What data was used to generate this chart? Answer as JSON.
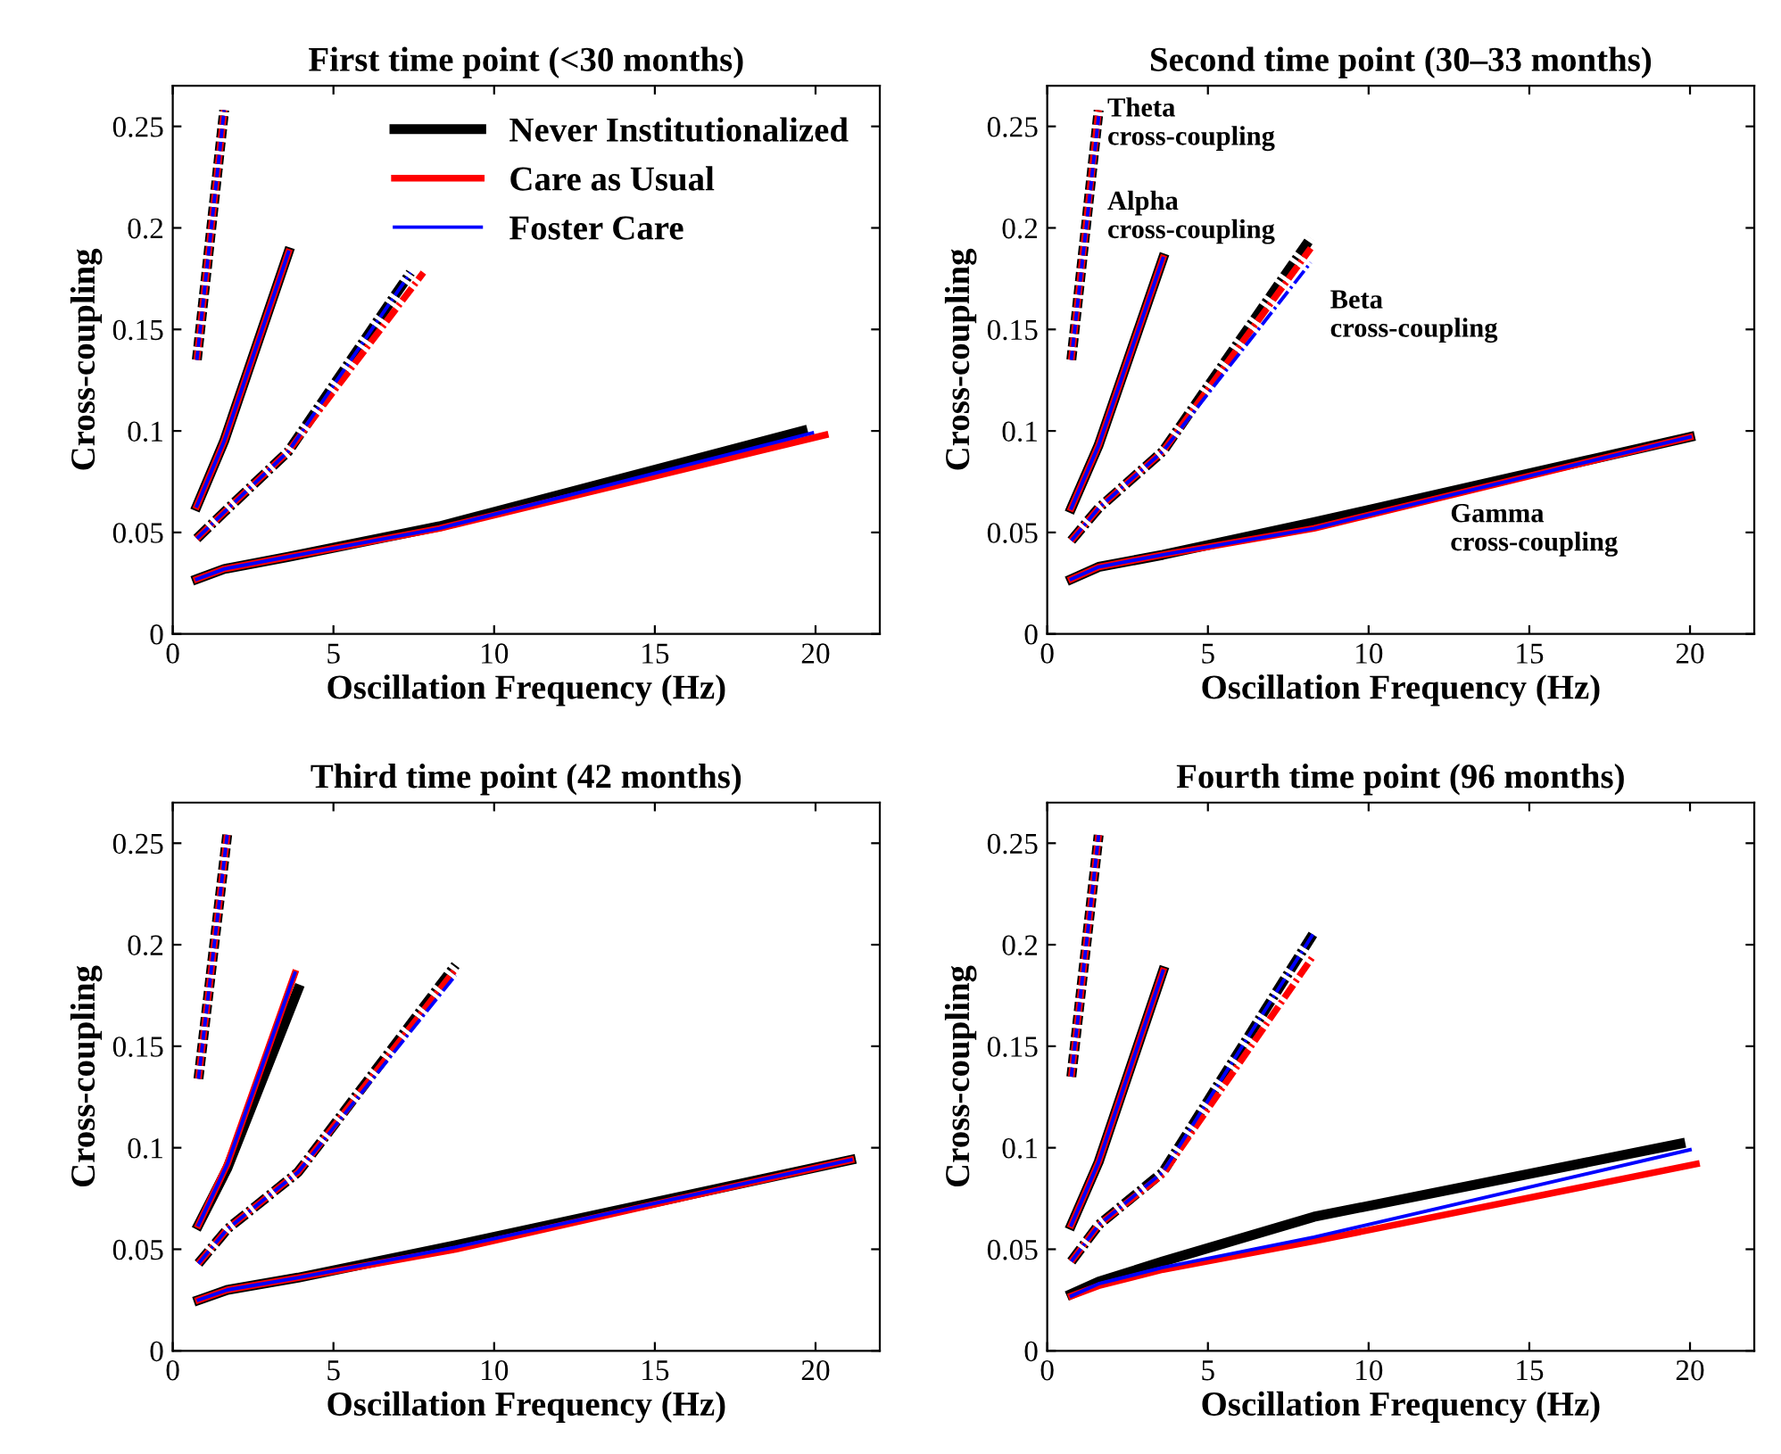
{
  "chart_data": [
    {
      "type": "line",
      "title": "First time point (<30 months)",
      "xlabel": "Oscillation Frequency (Hz)",
      "ylabel": "Cross-coupling",
      "xlim": [
        0,
        22
      ],
      "ylim": [
        0,
        0.27
      ],
      "xticks": [
        0,
        5,
        10,
        15,
        20
      ],
      "yticks": [
        0,
        0.05,
        0.1,
        0.15,
        0.2,
        0.25
      ],
      "grid": false,
      "legend": "top right",
      "series": [
        {
          "color": "#000000",
          "line_style": "dashed",
          "x": [
            0.75,
            1.6
          ],
          "values": [
            0.135,
            0.258
          ]
        },
        {
          "color": "#ff0000",
          "line_style": "dashed",
          "x": [
            0.75,
            1.6
          ],
          "values": [
            0.135,
            0.258
          ]
        },
        {
          "color": "#0000ff",
          "line_style": "dashed",
          "x": [
            0.75,
            1.6
          ],
          "values": [
            0.135,
            0.258
          ]
        },
        {
          "color": "#000000",
          "line_style": "solid",
          "x": [
            0.75,
            1.6,
            3.6
          ],
          "values": [
            0.063,
            0.095,
            0.188
          ]
        },
        {
          "color": "#ff0000",
          "line_style": "solid",
          "x": [
            0.75,
            1.6,
            3.6
          ],
          "values": [
            0.063,
            0.095,
            0.188
          ]
        },
        {
          "color": "#0000ff",
          "line_style": "solid",
          "x": [
            0.75,
            1.6,
            3.6
          ],
          "values": [
            0.063,
            0.095,
            0.188
          ]
        },
        {
          "color": "#000000",
          "line_style": "dashdot",
          "x": [
            0.75,
            1.6,
            3.6,
            7.4
          ],
          "values": [
            0.047,
            0.06,
            0.09,
            0.178
          ]
        },
        {
          "color": "#ff0000",
          "line_style": "dashdot",
          "x": [
            0.75,
            1.6,
            3.6,
            7.8
          ],
          "values": [
            0.047,
            0.06,
            0.09,
            0.178
          ]
        },
        {
          "color": "#0000ff",
          "line_style": "dashdot",
          "x": [
            0.75,
            1.6,
            3.6,
            7.4
          ],
          "values": [
            0.047,
            0.06,
            0.09,
            0.178
          ]
        },
        {
          "name": "Never Institutionalized",
          "color": "#000000",
          "line_style": "solid",
          "x": [
            0.75,
            1.6,
            3.6,
            8.3,
            19.6
          ],
          "values": [
            0.027,
            0.032,
            0.038,
            0.053,
            0.1
          ]
        },
        {
          "name": "Care as Usual",
          "color": "#ff0000",
          "line_style": "solid",
          "x": [
            0.75,
            1.6,
            3.6,
            8.3,
            20.3
          ],
          "values": [
            0.027,
            0.032,
            0.038,
            0.052,
            0.098
          ]
        },
        {
          "name": "Foster Care",
          "color": "#0000ff",
          "line_style": "solid",
          "x": [
            0.75,
            1.6,
            3.6,
            8.3,
            19.9
          ],
          "values": [
            0.027,
            0.032,
            0.038,
            0.052,
            0.099
          ]
        }
      ]
    },
    {
      "type": "line",
      "title": "Second time point (30–33 months)",
      "xlabel": "Oscillation Frequency (Hz)",
      "ylabel": "Cross-coupling",
      "xlim": [
        0,
        22
      ],
      "ylim": [
        0,
        0.27
      ],
      "xticks": [
        0,
        5,
        10,
        15,
        20
      ],
      "yticks": [
        0,
        0.05,
        0.1,
        0.15,
        0.2,
        0.25
      ],
      "grid": false,
      "annotations": [
        "Theta\ncross-coupling",
        "Alpha\ncross-coupling",
        "Beta\ncross-coupling",
        "Gamma\ncross-coupling"
      ],
      "series": [
        {
          "color": "#000000",
          "line_style": "dashed",
          "x": [
            0.75,
            1.6
          ],
          "values": [
            0.135,
            0.258
          ]
        },
        {
          "color": "#ff0000",
          "line_style": "dashed",
          "x": [
            0.75,
            1.6
          ],
          "values": [
            0.135,
            0.258
          ]
        },
        {
          "color": "#0000ff",
          "line_style": "dashed",
          "x": [
            0.75,
            1.6
          ],
          "values": [
            0.135,
            0.255
          ]
        },
        {
          "color": "#000000",
          "line_style": "solid",
          "x": [
            0.75,
            1.6,
            3.6
          ],
          "values": [
            0.062,
            0.093,
            0.185
          ]
        },
        {
          "color": "#ff0000",
          "line_style": "solid",
          "x": [
            0.75,
            1.6,
            3.6
          ],
          "values": [
            0.062,
            0.093,
            0.185
          ]
        },
        {
          "color": "#0000ff",
          "line_style": "solid",
          "x": [
            0.75,
            1.6,
            3.6
          ],
          "values": [
            0.062,
            0.093,
            0.185
          ]
        },
        {
          "color": "#000000",
          "line_style": "dashdot",
          "x": [
            0.75,
            1.6,
            3.6,
            8.2
          ],
          "values": [
            0.046,
            0.062,
            0.09,
            0.195
          ]
        },
        {
          "color": "#ff0000",
          "line_style": "dashdot",
          "x": [
            0.75,
            1.6,
            3.6,
            8.2
          ],
          "values": [
            0.046,
            0.062,
            0.09,
            0.19
          ]
        },
        {
          "color": "#0000ff",
          "line_style": "dashdot",
          "x": [
            0.75,
            1.6,
            3.6,
            8.2
          ],
          "values": [
            0.046,
            0.062,
            0.09,
            0.183
          ]
        },
        {
          "color": "#000000",
          "line_style": "solid",
          "x": [
            0.75,
            1.6,
            3.6,
            8.3,
            20
          ],
          "values": [
            0.027,
            0.033,
            0.039,
            0.055,
            0.097
          ]
        },
        {
          "color": "#ff0000",
          "line_style": "solid",
          "x": [
            0.75,
            1.6,
            3.6,
            8.3,
            20
          ],
          "values": [
            0.027,
            0.033,
            0.039,
            0.052,
            0.097
          ]
        },
        {
          "color": "#0000ff",
          "line_style": "solid",
          "x": [
            0.75,
            1.6,
            3.6,
            8.3,
            20
          ],
          "values": [
            0.027,
            0.033,
            0.039,
            0.052,
            0.097
          ]
        }
      ]
    },
    {
      "type": "line",
      "title": "Third time point (42 months)",
      "xlabel": "Oscillation Frequency (Hz)",
      "ylabel": "Cross-coupling",
      "xlim": [
        0,
        22
      ],
      "ylim": [
        0,
        0.27
      ],
      "xticks": [
        0,
        5,
        10,
        15,
        20
      ],
      "yticks": [
        0,
        0.05,
        0.1,
        0.15,
        0.2,
        0.25
      ],
      "grid": false,
      "series": [
        {
          "color": "#000000",
          "line_style": "dashed",
          "x": [
            0.8,
            1.7
          ],
          "values": [
            0.134,
            0.255
          ]
        },
        {
          "color": "#ff0000",
          "line_style": "dashed",
          "x": [
            0.8,
            1.7
          ],
          "values": [
            0.134,
            0.255
          ]
        },
        {
          "color": "#0000ff",
          "line_style": "dashed",
          "x": [
            0.8,
            1.7
          ],
          "values": [
            0.134,
            0.255
          ]
        },
        {
          "color": "#000000",
          "line_style": "solid",
          "x": [
            0.8,
            1.7,
            3.9
          ],
          "values": [
            0.062,
            0.09,
            0.178
          ]
        },
        {
          "color": "#ff0000",
          "line_style": "solid",
          "x": [
            0.8,
            1.7,
            3.8
          ],
          "values": [
            0.062,
            0.092,
            0.186
          ]
        },
        {
          "color": "#0000ff",
          "line_style": "solid",
          "x": [
            0.8,
            1.7,
            3.8
          ],
          "values": [
            0.062,
            0.092,
            0.186
          ]
        },
        {
          "color": "#000000",
          "line_style": "dashdot",
          "x": [
            0.8,
            1.7,
            3.9,
            8.8
          ],
          "values": [
            0.043,
            0.06,
            0.088,
            0.19
          ]
        },
        {
          "color": "#ff0000",
          "line_style": "dashdot",
          "x": [
            0.8,
            1.7,
            3.9,
            8.8
          ],
          "values": [
            0.043,
            0.06,
            0.088,
            0.188
          ]
        },
        {
          "color": "#0000ff",
          "line_style": "dashdot",
          "x": [
            0.8,
            1.7,
            3.9,
            8.8
          ],
          "values": [
            0.043,
            0.06,
            0.088,
            0.185
          ]
        },
        {
          "color": "#000000",
          "line_style": "solid",
          "x": [
            0.8,
            1.7,
            3.9,
            8.8,
            21.1
          ],
          "values": [
            0.025,
            0.03,
            0.036,
            0.052,
            0.094
          ]
        },
        {
          "color": "#ff0000",
          "line_style": "solid",
          "x": [
            0.8,
            1.7,
            3.9,
            8.8,
            21.1
          ],
          "values": [
            0.025,
            0.03,
            0.036,
            0.05,
            0.094
          ]
        },
        {
          "color": "#0000ff",
          "line_style": "solid",
          "x": [
            0.8,
            1.7,
            3.9,
            8.8,
            21.1
          ],
          "values": [
            0.025,
            0.03,
            0.036,
            0.051,
            0.094
          ]
        }
      ]
    },
    {
      "type": "line",
      "title": "Fourth time point (96 months)",
      "xlabel": "Oscillation Frequency (Hz)",
      "ylabel": "Cross-coupling",
      "xlim": [
        0,
        22
      ],
      "ylim": [
        0,
        0.27
      ],
      "xticks": [
        0,
        5,
        10,
        15,
        20
      ],
      "yticks": [
        0,
        0.05,
        0.1,
        0.15,
        0.2,
        0.25
      ],
      "grid": false,
      "series": [
        {
          "color": "#000000",
          "line_style": "dashed",
          "x": [
            0.75,
            1.6
          ],
          "values": [
            0.135,
            0.254
          ]
        },
        {
          "color": "#ff0000",
          "line_style": "dashed",
          "x": [
            0.75,
            1.6
          ],
          "values": [
            0.135,
            0.254
          ]
        },
        {
          "color": "#0000ff",
          "line_style": "dashed",
          "x": [
            0.75,
            1.6
          ],
          "values": [
            0.135,
            0.254
          ]
        },
        {
          "color": "#000000",
          "line_style": "solid",
          "x": [
            0.75,
            1.6,
            3.6
          ],
          "values": [
            0.062,
            0.093,
            0.187
          ]
        },
        {
          "color": "#ff0000",
          "line_style": "solid",
          "x": [
            0.75,
            1.6,
            3.6
          ],
          "values": [
            0.062,
            0.093,
            0.187
          ]
        },
        {
          "color": "#0000ff",
          "line_style": "solid",
          "x": [
            0.75,
            1.6,
            3.6
          ],
          "values": [
            0.062,
            0.093,
            0.187
          ]
        },
        {
          "color": "#000000",
          "line_style": "dashdot",
          "x": [
            0.75,
            1.6,
            3.6,
            8.3
          ],
          "values": [
            0.044,
            0.062,
            0.088,
            0.206
          ]
        },
        {
          "color": "#ff0000",
          "line_style": "dashdot",
          "x": [
            0.75,
            1.6,
            3.6,
            8.3
          ],
          "values": [
            0.044,
            0.062,
            0.087,
            0.195
          ]
        },
        {
          "color": "#0000ff",
          "line_style": "dashdot",
          "x": [
            0.75,
            1.6,
            3.6,
            8.3
          ],
          "values": [
            0.044,
            0.062,
            0.088,
            0.206
          ]
        },
        {
          "color": "#000000",
          "line_style": "solid",
          "x": [
            0.75,
            1.6,
            3.6,
            8.3,
            19.7
          ],
          "values": [
            0.028,
            0.034,
            0.044,
            0.066,
            0.102
          ]
        },
        {
          "color": "#ff0000",
          "line_style": "solid",
          "x": [
            0.75,
            1.6,
            3.6,
            8.3,
            20.2
          ],
          "values": [
            0.027,
            0.032,
            0.04,
            0.054,
            0.092
          ]
        },
        {
          "color": "#0000ff",
          "line_style": "solid",
          "x": [
            0.75,
            1.6,
            3.6,
            8.3,
            20
          ],
          "values": [
            0.027,
            0.033,
            0.041,
            0.056,
            0.099
          ]
        }
      ]
    }
  ]
}
